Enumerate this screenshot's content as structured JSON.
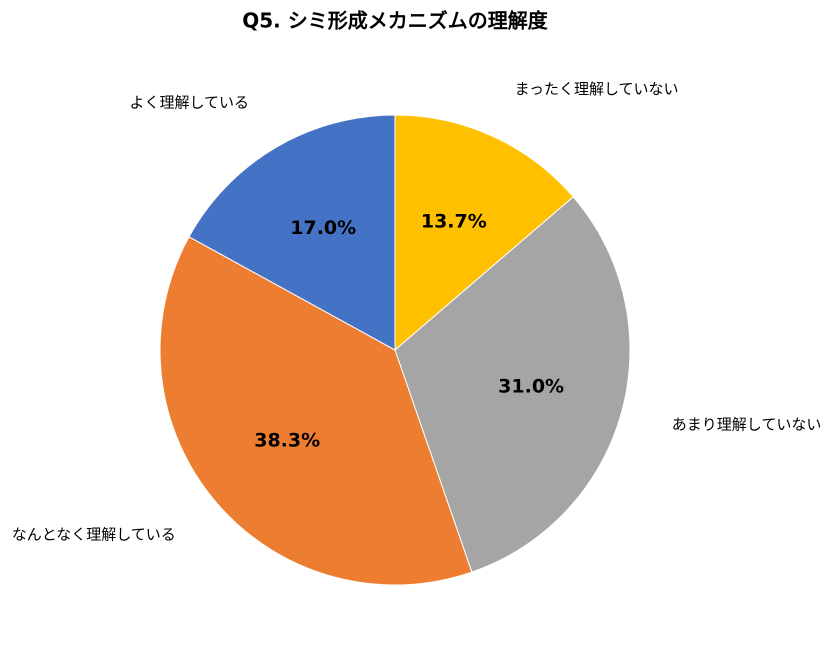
{
  "chart_data": {
    "type": "pie",
    "title": "Q5. シミ形成メカニズムの理解度",
    "categories": [
      "まったく理解していない",
      "あまり理解していない",
      "なんとなく理解している",
      "よく理解している"
    ],
    "values": [
      13.7,
      31.0,
      38.3,
      17.0
    ],
    "value_labels": [
      "13.7%",
      "31.0%",
      "38.3%",
      "17.0%"
    ],
    "colors": [
      "#FFC000",
      "#A5A5A5",
      "#ED7D31",
      "#4472C4"
    ]
  }
}
